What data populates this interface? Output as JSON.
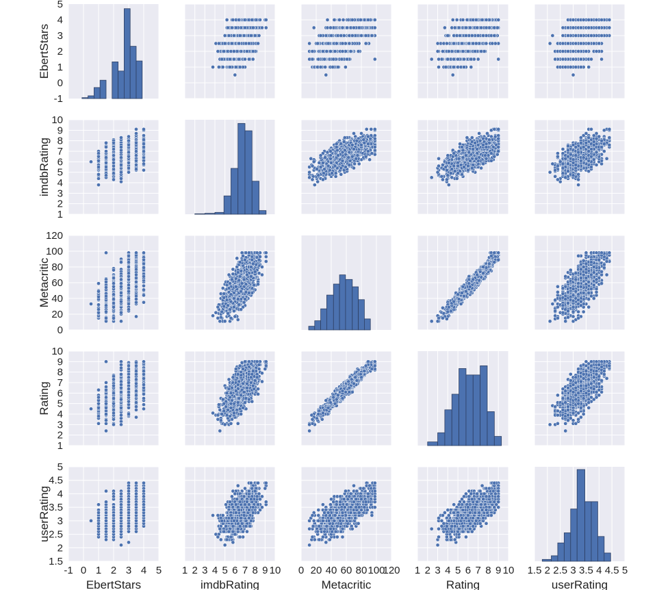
{
  "chart_data": {
    "type": "scatter",
    "subtype": "pairplot",
    "variables": [
      "EbertStars",
      "imdbRating",
      "Metacritic",
      "Rating",
      "userRating"
    ],
    "axes": {
      "EbertStars": {
        "label": "EbertStars",
        "lim": [
          -1,
          5
        ],
        "ticks": [
          -1,
          0,
          1,
          2,
          3,
          4,
          5
        ]
      },
      "imdbRating": {
        "label": "imdbRating",
        "lim": [
          1,
          10
        ],
        "ticks": [
          1,
          2,
          3,
          4,
          5,
          6,
          7,
          8,
          9,
          10
        ]
      },
      "Metacritic": {
        "label": "Metacritic",
        "lim": [
          0,
          120
        ],
        "ticks": [
          0,
          20,
          40,
          60,
          80,
          100,
          120
        ]
      },
      "Rating": {
        "label": "Rating",
        "lim": [
          1,
          10
        ],
        "ticks": [
          1,
          2,
          3,
          4,
          5,
          6,
          7,
          8,
          9,
          10
        ]
      },
      "userRating": {
        "label": "userRating",
        "lim": [
          1.5,
          5.0
        ],
        "ticks": [
          1.5,
          2.0,
          2.5,
          3.0,
          3.5,
          4.0,
          4.5,
          5.0
        ]
      }
    },
    "histograms": {
      "EbertStars": {
        "bins": [
          {
            "x0": -0.1,
            "x1": 0.3,
            "h": 0.01
          },
          {
            "x0": 0.3,
            "x1": 0.7,
            "h": 0.03
          },
          {
            "x0": 0.7,
            "x1": 1.1,
            "h": 0.12
          },
          {
            "x0": 1.1,
            "x1": 1.5,
            "h": 0.2
          },
          {
            "x0": 1.5,
            "x1": 1.9,
            "h": 0.0
          },
          {
            "x0": 1.9,
            "x1": 2.3,
            "h": 0.4
          },
          {
            "x0": 2.3,
            "x1": 2.7,
            "h": 0.3
          },
          {
            "x0": 2.7,
            "x1": 3.1,
            "h": 0.98
          },
          {
            "x0": 3.1,
            "x1": 3.5,
            "h": 0.57
          },
          {
            "x0": 3.5,
            "x1": 3.9,
            "h": 0.41
          }
        ]
      },
      "imdbRating": {
        "bins": [
          {
            "x0": 2.0,
            "x1": 3.0,
            "h": 0.005
          },
          {
            "x0": 3.0,
            "x1": 4.0,
            "h": 0.01
          },
          {
            "x0": 4.0,
            "x1": 4.9,
            "h": 0.02
          },
          {
            "x0": 4.9,
            "x1": 5.6,
            "h": 0.2
          },
          {
            "x0": 5.6,
            "x1": 6.3,
            "h": 0.5
          },
          {
            "x0": 6.3,
            "x1": 7.0,
            "h": 0.99
          },
          {
            "x0": 7.0,
            "x1": 7.7,
            "h": 0.91
          },
          {
            "x0": 7.7,
            "x1": 8.4,
            "h": 0.36
          },
          {
            "x0": 8.4,
            "x1": 9.1,
            "h": 0.04
          }
        ]
      },
      "Metacritic": {
        "bins": [
          {
            "x0": 10,
            "x1": 18,
            "h": 0.04
          },
          {
            "x0": 18,
            "x1": 26,
            "h": 0.1
          },
          {
            "x0": 26,
            "x1": 34,
            "h": 0.23
          },
          {
            "x0": 34,
            "x1": 43,
            "h": 0.38
          },
          {
            "x0": 43,
            "x1": 51,
            "h": 0.5
          },
          {
            "x0": 51,
            "x1": 59,
            "h": 0.6
          },
          {
            "x0": 59,
            "x1": 68,
            "h": 0.55
          },
          {
            "x0": 68,
            "x1": 76,
            "h": 0.47
          },
          {
            "x0": 76,
            "x1": 84,
            "h": 0.33
          },
          {
            "x0": 84,
            "x1": 92,
            "h": 0.12
          }
        ]
      },
      "Rating": {
        "bins": [
          {
            "x0": 2.0,
            "x1": 3.0,
            "h": 0.04
          },
          {
            "x0": 3.0,
            "x1": 3.7,
            "h": 0.14
          },
          {
            "x0": 3.7,
            "x1": 4.4,
            "h": 0.39
          },
          {
            "x0": 4.4,
            "x1": 5.1,
            "h": 0.56
          },
          {
            "x0": 5.1,
            "x1": 5.8,
            "h": 0.84
          },
          {
            "x0": 5.8,
            "x1": 6.5,
            "h": 0.77
          },
          {
            "x0": 6.5,
            "x1": 7.2,
            "h": 0.77
          },
          {
            "x0": 7.2,
            "x1": 7.9,
            "h": 0.87
          },
          {
            "x0": 7.9,
            "x1": 8.6,
            "h": 0.37
          },
          {
            "x0": 8.6,
            "x1": 9.3,
            "h": 0.1
          }
        ]
      },
      "userRating": {
        "bins": [
          {
            "x0": 1.8,
            "x1": 2.15,
            "h": 0.02
          },
          {
            "x0": 2.15,
            "x1": 2.4,
            "h": 0.06
          },
          {
            "x0": 2.4,
            "x1": 2.65,
            "h": 0.2
          },
          {
            "x0": 2.65,
            "x1": 2.9,
            "h": 0.31
          },
          {
            "x0": 2.9,
            "x1": 3.15,
            "h": 0.57
          },
          {
            "x0": 3.15,
            "x1": 3.45,
            "h": 1.0
          },
          {
            "x0": 3.45,
            "x1": 3.7,
            "h": 0.65
          },
          {
            "x0": 3.7,
            "x1": 3.95,
            "h": 0.65
          },
          {
            "x0": 3.95,
            "x1": 4.2,
            "h": 0.27
          },
          {
            "x0": 4.2,
            "x1": 4.45,
            "h": 0.09
          }
        ]
      }
    },
    "scatter_points": 1100,
    "marker_color": "#4c72b0",
    "marker_edge": "#ffffff",
    "grid": true,
    "background": "#eaeaf2"
  }
}
